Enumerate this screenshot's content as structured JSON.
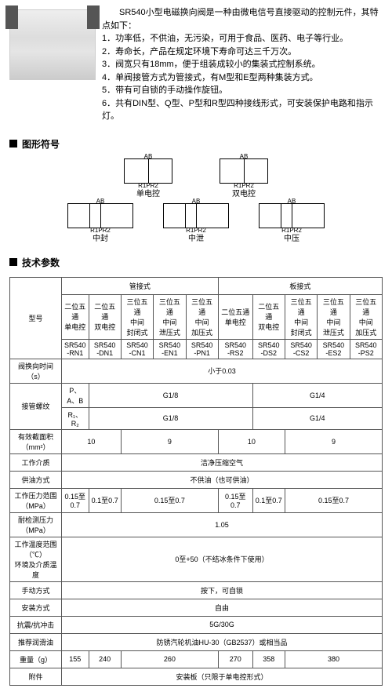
{
  "intro": {
    "lead": "SR540小型电磁换向阀是一种由微电信号直接驱动的控制元件，其特点如下：",
    "items": [
      "1．功率低，不供油，无污染，可用于食品、医药、电子等行业。",
      "2．寿命长，产品在规定环境下寿命可达三千万次。",
      "3．阀宽只有18mm，便于组装成较小的集装式控制系统。",
      "4．单阀接管方式为管接式，有M型和E型两种集装方式。",
      "5．带有可自锁的手动操作旋钮。",
      "6．共有DIN型、Q型、P型和R型四种接线形式，可安装保护电路和指示灯。"
    ]
  },
  "sections": {
    "symbols": "图形符号",
    "specs": "技术参数"
  },
  "symbols": {
    "r1": [
      {
        "top": "AB",
        "bot": "R1PR2",
        "lbl": "单电控"
      },
      {
        "top": "AB",
        "bot": "R1PR2",
        "lbl": "双电控"
      }
    ],
    "r2": [
      {
        "top": "AB",
        "bot": "R1PR2",
        "lbl": "中封"
      },
      {
        "top": "AB",
        "bot": "R1PR2",
        "lbl": "中泄"
      },
      {
        "top": "AB",
        "bot": "R1PR2",
        "lbl": "中压"
      }
    ]
  },
  "table": {
    "colgrp": {
      "model": "型号",
      "pipe": "管接式",
      "plate": "板接式"
    },
    "subhdr": [
      "二位五通\n单电控",
      "二位五通\n双电控",
      "三位五通\n中间\n封闭式",
      "三位五通\n中间\n泄压式",
      "三位五通\n中间\n加压式",
      "二位五通\n单电控",
      "二位五通\n双电控",
      "三位五通\n中间\n封闭式",
      "三位五通\n中间\n泄压式",
      "三位五通\n中间\n加压式"
    ],
    "models": [
      "SR540\n-RN1",
      "SR540\n-DN1",
      "SR540\n-CN1",
      "SR540\n-EN1",
      "SR540\n-PN1",
      "SR540\n-RS2",
      "SR540\n-DS2",
      "SR540\n-CS2",
      "SR540\n-ES2",
      "SR540\n-PS2"
    ],
    "rows": [
      {
        "label": "阀换向时间（s）",
        "span": 10,
        "val": "小于0.03"
      },
      {
        "label": "接管螺纹",
        "sublabel": "P、A、B",
        "vals": [
          {
            "s": 5,
            "v": "G1/8"
          },
          {
            "s": 5,
            "v": "G1/4"
          }
        ]
      },
      {
        "label": "",
        "sublabel": "R₁、R₂",
        "vals": [
          {
            "s": 5,
            "v": "G1/8"
          },
          {
            "s": 5,
            "v": "G1/4"
          }
        ]
      },
      {
        "label": "有效截面积（mm²）",
        "vals": [
          {
            "s": 2,
            "v": "10"
          },
          {
            "s": 3,
            "v": "9"
          },
          {
            "s": 2,
            "v": "10"
          },
          {
            "s": 3,
            "v": "9"
          }
        ]
      },
      {
        "label": "工作介质",
        "span": 10,
        "val": "洁净压缩空气"
      },
      {
        "label": "供油方式",
        "span": 10,
        "val": "不供油（也可供油）"
      },
      {
        "label": "工作压力范围（MPa）",
        "vals": [
          {
            "s": 1,
            "v": "0.15至0.7"
          },
          {
            "s": 1,
            "v": "0.1至0.7"
          },
          {
            "s": 3,
            "v": "0.15至0.7"
          },
          {
            "s": 1,
            "v": "0.15至0.7"
          },
          {
            "s": 1,
            "v": "0.1至0.7"
          },
          {
            "s": 3,
            "v": "0.15至0.7"
          }
        ]
      },
      {
        "label": "耐检测压力（MPa）",
        "span": 10,
        "val": "1.05"
      },
      {
        "label": "工作温度范围（℃）\n环境及介质温度",
        "span": 10,
        "val": "0至+50（不结冰条件下使用）"
      },
      {
        "label": "手动方式",
        "span": 10,
        "val": "按下，可自锁"
      },
      {
        "label": "安装方式",
        "span": 10,
        "val": "自由"
      },
      {
        "label": "抗震/抗冲击",
        "span": 10,
        "val": "5G/30G"
      },
      {
        "label": "推荐润滑油",
        "span": 10,
        "val": "防锈汽轮机油HU-30（GB2537）或相当品"
      },
      {
        "label": "重量（g）",
        "vals": [
          {
            "s": 1,
            "v": "155"
          },
          {
            "s": 1,
            "v": "240"
          },
          {
            "s": 3,
            "v": "260"
          },
          {
            "s": 1,
            "v": "270"
          },
          {
            "s": 1,
            "v": "358"
          },
          {
            "s": 3,
            "v": "380"
          }
        ]
      },
      {
        "label": "附件",
        "span": 10,
        "val": "安装板（只限于单电控形式）"
      }
    ]
  }
}
